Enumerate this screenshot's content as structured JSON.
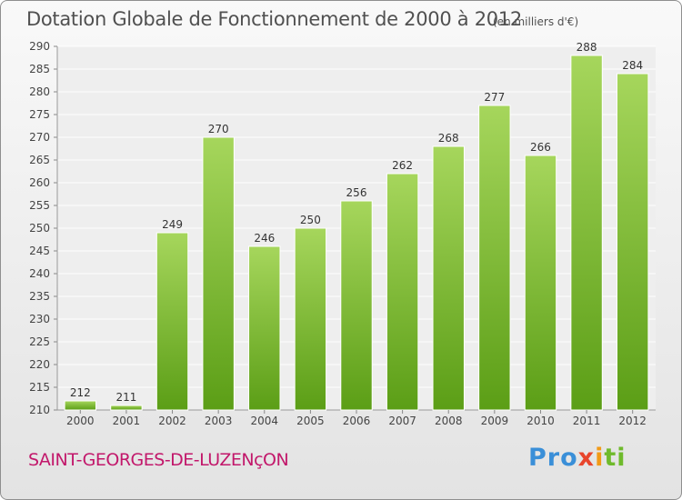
{
  "title": "Dotation Globale de Fonctionnement de 2000 à 2012",
  "unit": "(en milliers d'€)",
  "commune": "SAINT-GEORGES-DE-LUZENçON",
  "logo": {
    "p1": "Pro",
    "p2": "x",
    "p3": "i",
    "p4": "ti"
  },
  "colors": {
    "bar_light": "#a6d65c",
    "bar_dark": "#5b9e16",
    "commune": "#c2186b"
  },
  "chart_data": {
    "type": "bar",
    "categories": [
      "2000",
      "2001",
      "2002",
      "2003",
      "2004",
      "2005",
      "2006",
      "2007",
      "2008",
      "2009",
      "2010",
      "2011",
      "2012"
    ],
    "values": [
      212,
      211,
      249,
      270,
      246,
      250,
      256,
      262,
      268,
      277,
      266,
      288,
      284
    ],
    "ylim": [
      210,
      290
    ],
    "yticks": [
      210,
      215,
      220,
      225,
      230,
      235,
      240,
      245,
      250,
      255,
      260,
      265,
      270,
      275,
      280,
      285,
      290
    ],
    "grid": true,
    "data_labels": true
  }
}
